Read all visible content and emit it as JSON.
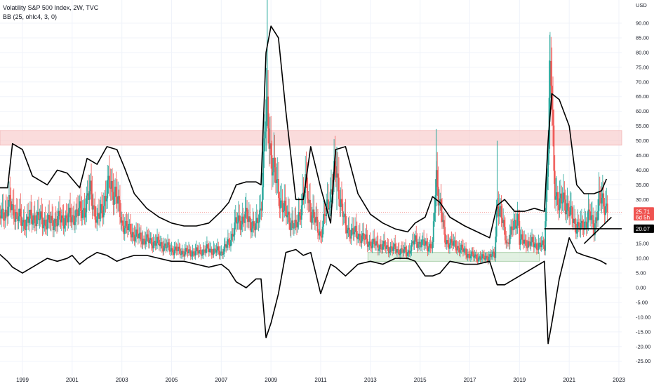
{
  "header": {
    "title": "Volatility S&P 500 Index, 2W, TVC",
    "indicator": "BB (25, ohlc4, 3, 0)"
  },
  "axis": {
    "currency": "USD",
    "y_ticks": [
      "90.00",
      "85.00",
      "80.00",
      "75.00",
      "70.00",
      "65.00",
      "60.00",
      "55.00",
      "50.00",
      "45.00",
      "40.00",
      "35.00",
      "30.00",
      "25.00",
      "20.00",
      "15.00",
      "10.00",
      "5.00",
      "0.00",
      "-5.00",
      "-10.00",
      "-15.00",
      "-20.00",
      "-25.00"
    ],
    "x_ticks": [
      "1999",
      "2001",
      "2003",
      "2005",
      "2007",
      "2009",
      "2011",
      "2013",
      "2015",
      "2017",
      "2019",
      "2021",
      "2023"
    ]
  },
  "badges": {
    "price": "25.71",
    "countdown": "6d 5h",
    "level": "20.07"
  },
  "colors": {
    "up": "#26a69a",
    "down": "#ef5350",
    "band": "#000000",
    "resistance_zone": "#f8d0d0",
    "support_zone": "#d8ecd8",
    "price_line": "#ef5350"
  },
  "chart_data": {
    "type": "candlestick",
    "title": "Volatility S&P 500 Index, 2W, TVC",
    "ylabel": "USD",
    "xlim": [
      1998.0,
      2023.3
    ],
    "ylim": [
      -28,
      100
    ],
    "last_close": 25.71,
    "zones": [
      {
        "name": "resistance",
        "x": [
          1998.0,
          2023.3
        ],
        "y": [
          48.5,
          53.5
        ]
      },
      {
        "name": "support",
        "x": [
          2012.9,
          2019.8
        ],
        "y": [
          9.0,
          12.0
        ]
      }
    ],
    "level_line": {
      "x": [
        2020.0,
        2023.3
      ],
      "y": 20.07
    },
    "trend_line": {
      "x": [
        2021.6,
        2022.7
      ],
      "y": [
        15.0,
        24.0
      ]
    },
    "vix_close": {
      "x": [
        1998.0,
        1998.5,
        1999.0,
        1999.5,
        2000.0,
        2000.5,
        2001.0,
        2001.5,
        2001.75,
        2002.0,
        2002.5,
        2002.75,
        2003.0,
        2003.5,
        2004.0,
        2004.5,
        2005.0,
        2005.5,
        2006.0,
        2006.5,
        2007.0,
        2007.3,
        2007.6,
        2008.0,
        2008.4,
        2008.6,
        2008.8,
        2008.9,
        2009.0,
        2009.3,
        2009.6,
        2010.0,
        2010.4,
        2010.6,
        2011.0,
        2011.6,
        2011.8,
        2012.0,
        2012.5,
        2013.0,
        2013.5,
        2014.0,
        2014.5,
        2014.8,
        2015.0,
        2015.5,
        2015.65,
        2016.0,
        2016.5,
        2017.0,
        2017.5,
        2018.0,
        2018.1,
        2018.5,
        2018.95,
        2019.0,
        2019.5,
        2020.0,
        2020.15,
        2020.25,
        2020.4,
        2020.6,
        2020.8,
        2021.0,
        2021.2,
        2021.5,
        2021.8,
        2022.0,
        2022.2,
        2022.5
      ],
      "y": [
        23,
        28,
        22,
        24,
        22,
        23,
        24,
        27,
        33,
        22,
        35,
        32,
        22,
        18,
        16,
        15,
        13,
        12,
        12,
        13,
        12,
        15,
        22,
        24,
        20,
        28,
        60,
        55,
        45,
        32,
        25,
        20,
        35,
        26,
        18,
        40,
        30,
        20,
        18,
        15,
        14,
        13,
        12,
        16,
        15,
        14,
        38,
        16,
        14,
        11,
        10,
        11,
        30,
        15,
        25,
        16,
        15,
        14,
        50,
        75,
        35,
        28,
        30,
        26,
        22,
        20,
        25,
        20,
        30,
        28
      ]
    },
    "bollinger": {
      "x": [
        1998.0,
        1998.4,
        1998.6,
        1999.0,
        1999.4,
        2000.0,
        2000.4,
        2000.8,
        2001.0,
        2001.3,
        2001.6,
        2002.0,
        2002.4,
        2002.8,
        2003.1,
        2003.5,
        2004.0,
        2004.5,
        2005.0,
        2005.5,
        2006.0,
        2006.5,
        2007.0,
        2007.3,
        2007.6,
        2008.0,
        2008.4,
        2008.6,
        2008.8,
        2009.0,
        2009.3,
        2009.6,
        2010.0,
        2010.3,
        2010.6,
        2011.0,
        2011.4,
        2011.6,
        2012.0,
        2012.5,
        2013.0,
        2013.5,
        2014.0,
        2014.5,
        2014.8,
        2015.2,
        2015.5,
        2015.8,
        2016.2,
        2016.8,
        2017.3,
        2017.8,
        2018.1,
        2018.4,
        2018.8,
        2019.2,
        2019.6,
        2020.0,
        2020.15,
        2020.3,
        2020.6,
        2021.0,
        2021.3,
        2021.6,
        2022.0,
        2022.3,
        2022.5
      ],
      "upper": [
        34,
        34,
        49,
        47,
        38,
        35,
        40,
        39,
        37,
        34,
        44,
        42,
        48,
        47,
        41,
        32,
        27,
        24,
        22,
        21,
        21,
        22,
        26,
        29,
        35,
        36,
        36,
        35,
        80,
        89,
        85,
        60,
        30,
        30,
        48,
        34,
        22,
        47,
        48,
        32,
        25,
        22,
        20,
        19,
        22,
        24,
        31,
        29,
        24,
        21,
        19,
        17,
        28,
        30,
        26,
        26,
        27,
        26,
        50,
        66,
        64,
        55,
        35,
        32,
        32,
        33,
        37
      ],
      "lower": [
        12,
        9,
        7,
        5,
        7,
        10,
        9,
        10,
        11,
        8,
        10,
        12,
        11,
        9,
        10,
        11,
        11,
        10,
        9,
        9,
        8,
        7,
        8,
        6,
        2,
        0,
        3,
        3,
        -17,
        -12,
        -2,
        12,
        13,
        11,
        12,
        -2,
        8,
        7,
        4,
        8,
        9,
        8,
        10,
        10,
        9,
        4,
        4,
        5,
        9,
        8,
        8,
        9,
        1,
        1,
        3,
        5,
        7,
        9,
        -19,
        -12,
        3,
        17,
        12,
        11,
        10,
        9,
        8
      ]
    }
  }
}
